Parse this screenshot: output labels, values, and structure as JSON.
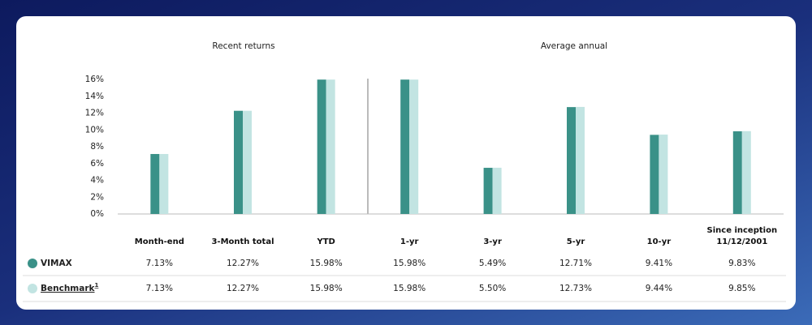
{
  "chart_data": {
    "type": "bar",
    "group_titles": [
      "Recent returns",
      "Average annual"
    ],
    "categories": [
      "Month-end",
      "3-Month total",
      "YTD",
      "1-yr",
      "3-yr",
      "5-yr",
      "10-yr",
      "Since inception 11/12/2001"
    ],
    "series": [
      {
        "name": "VIMAX",
        "color": "#3a9188",
        "values": [
          7.13,
          12.27,
          15.98,
          15.98,
          5.49,
          12.71,
          9.41,
          9.83
        ],
        "value_labels": [
          "7.13%",
          "12.27%",
          "15.98%",
          "15.98%",
          "5.49%",
          "12.71%",
          "9.41%",
          "9.83%"
        ]
      },
      {
        "name": "Benchmark",
        "note": "1",
        "color": "#c2e4e2",
        "values": [
          7.13,
          12.27,
          15.98,
          15.98,
          5.5,
          12.73,
          9.44,
          9.85
        ],
        "value_labels": [
          "7.13%",
          "12.27%",
          "15.98%",
          "15.98%",
          "5.50%",
          "12.73%",
          "9.44%",
          "9.85%"
        ]
      }
    ],
    "ylim": [
      0,
      16
    ],
    "yticks": [
      {
        "value": 0,
        "label": "0%"
      },
      {
        "value": 2,
        "label": "2%"
      },
      {
        "value": 4,
        "label": "4%"
      },
      {
        "value": 6,
        "label": "6%"
      },
      {
        "value": 8,
        "label": "8%"
      },
      {
        "value": 10,
        "label": "10%"
      },
      {
        "value": 12,
        "label": "12%"
      },
      {
        "value": 14,
        "label": "14%"
      },
      {
        "value": 16,
        "label": "16%"
      }
    ],
    "grid": false
  }
}
